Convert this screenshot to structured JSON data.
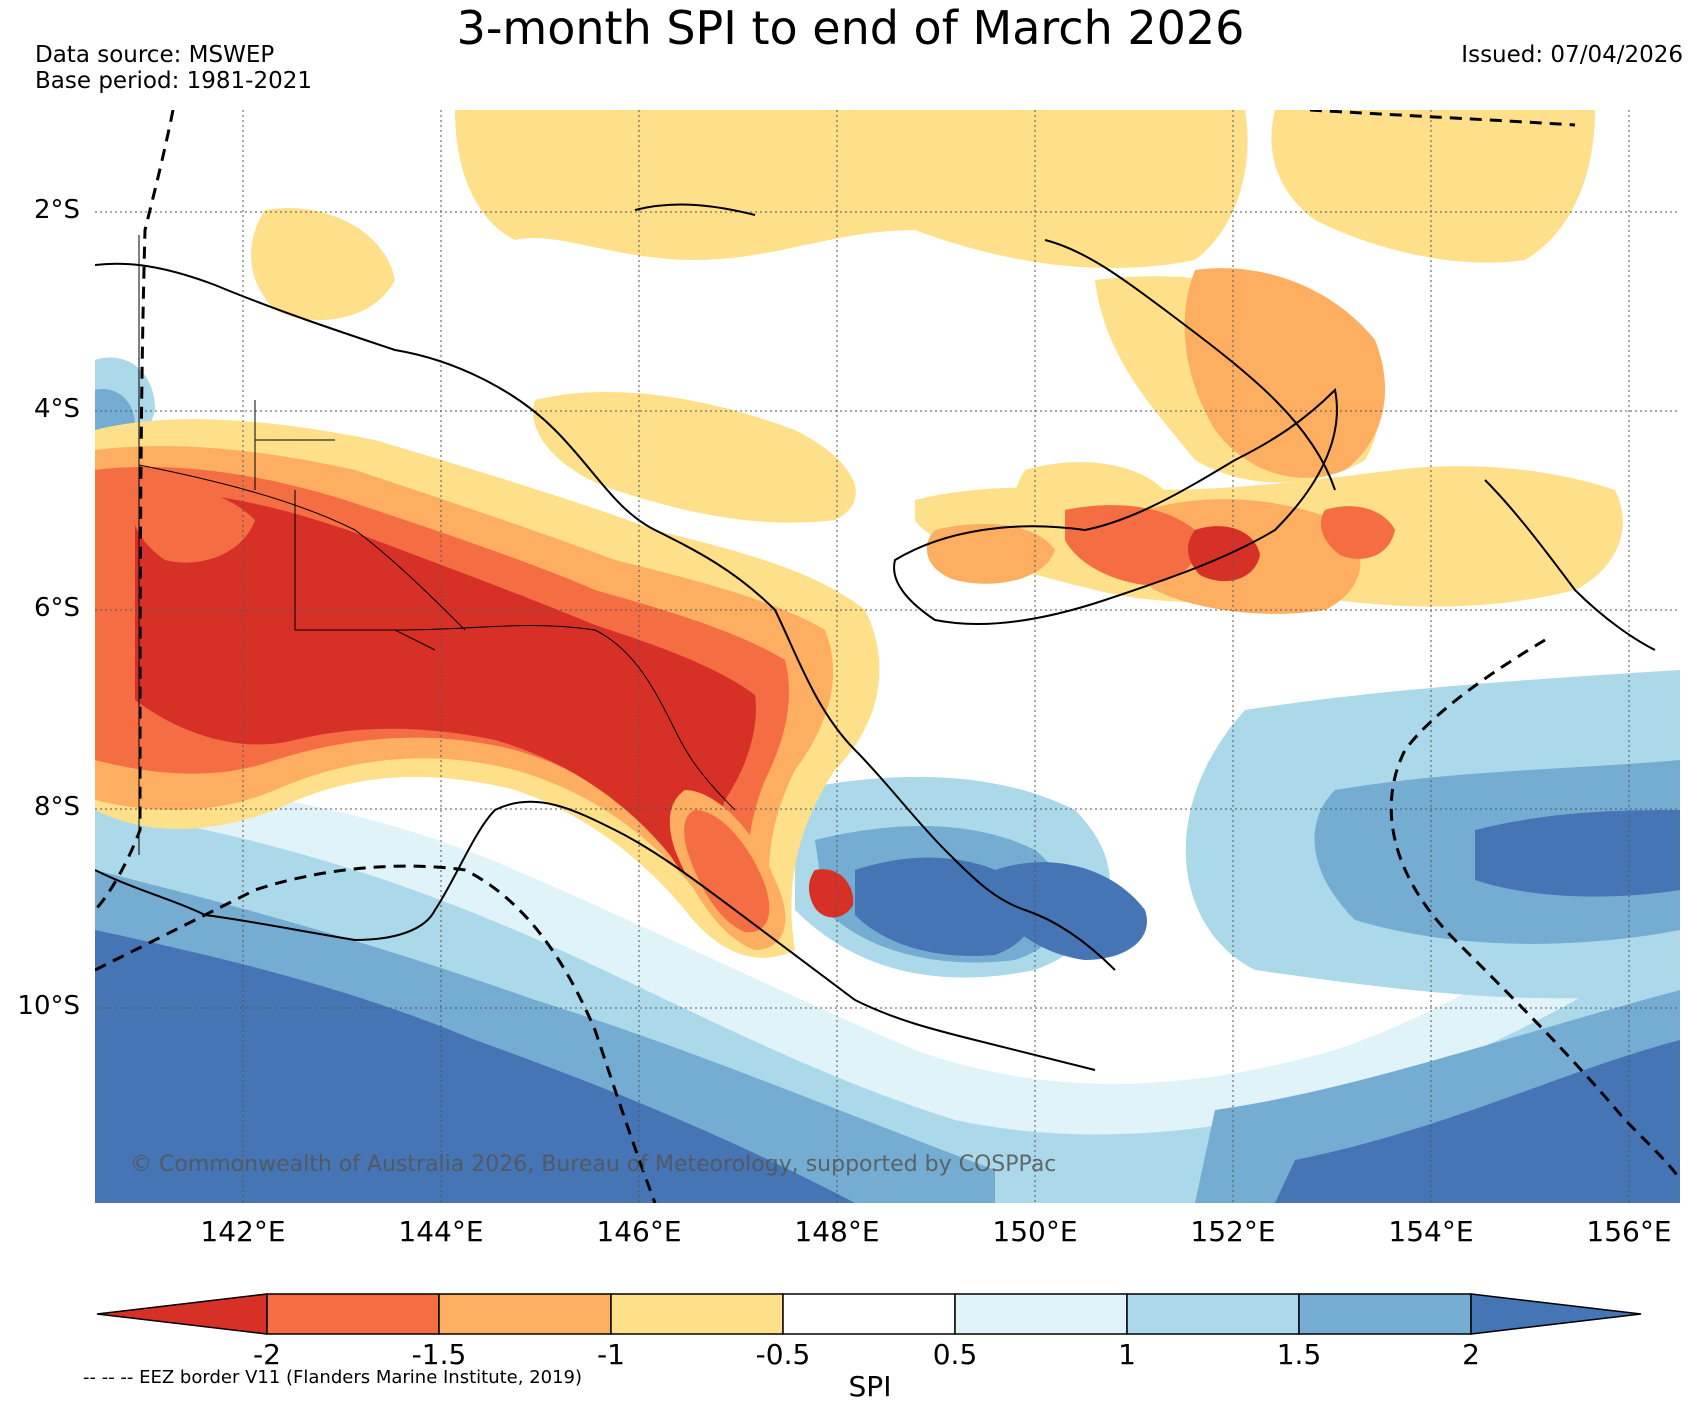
{
  "title": "3-month SPI to end of March 2026",
  "data_source": "Data source: MSWEP",
  "base_period": "Base period: 1981-2021",
  "issued": "Issued: 07/04/2026",
  "credit": "© Commonwealth of Australia 2026, Bureau of Meteorology, supported by COSPPac",
  "eez_note": "-- -- -- EEZ border V11 (Flanders Marine Institute, 2019)",
  "colorbar": {
    "label": "SPI",
    "ticks": [
      "-2",
      "-1.5",
      "-1",
      "-0.5",
      "0.5",
      "1",
      "1.5",
      "2"
    ],
    "colors": [
      "#d73027",
      "#f46d43",
      "#fdae61",
      "#fee08b",
      "#ffffff",
      "#e0f3f8",
      "#abd9e9",
      "#74add1",
      "#4575b4"
    ]
  },
  "axes": {
    "lat_labels": [
      "2°S",
      "4°S",
      "6°S",
      "8°S",
      "10°S"
    ],
    "lon_labels": [
      "142°E",
      "144°E",
      "146°E",
      "148°E",
      "150°E",
      "152°E",
      "154°E",
      "156°E"
    ],
    "lat_values": [
      -2,
      -4,
      -6,
      -8,
      -10
    ],
    "lon_values": [
      142,
      144,
      146,
      148,
      150,
      152,
      154,
      156
    ],
    "lon_range": [
      140.5,
      156.5
    ],
    "lat_range": [
      -1,
      -12
    ]
  }
}
